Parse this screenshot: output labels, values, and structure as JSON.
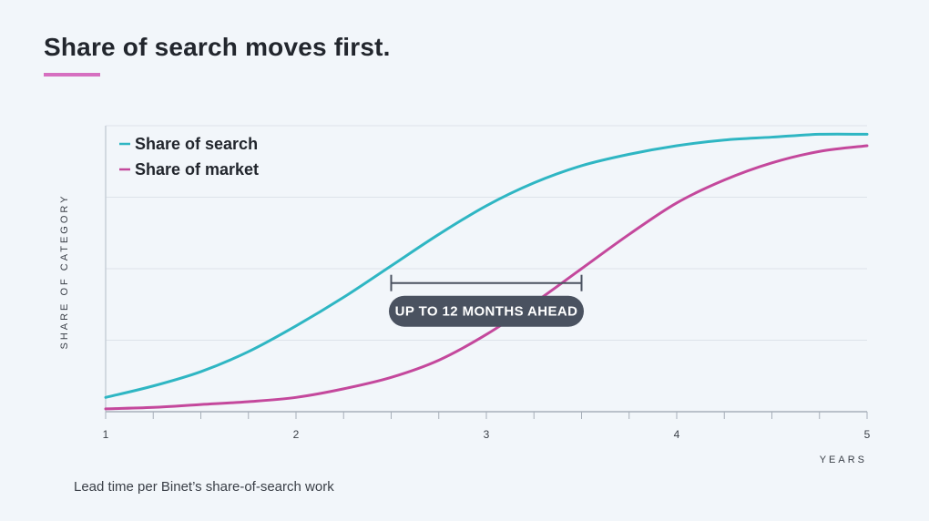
{
  "page": {
    "title": "Share of search moves first.",
    "caption": "Lead time per Binet’s share-of-search work",
    "accent_color": "#d66fc0"
  },
  "chart_data": {
    "type": "line",
    "title": "Share of search moves first.",
    "xlabel": "YEARS",
    "ylabel": "SHARE OF CATEGORY",
    "xlim": [
      1,
      5
    ],
    "ylim": [
      0,
      1
    ],
    "x_ticks": [
      1,
      2,
      3,
      4,
      5
    ],
    "x_tick_labels": [
      "1",
      "2",
      "3",
      "4",
      "5"
    ],
    "grid": "horizontal",
    "legend_position": "top-left",
    "series": [
      {
        "name": "Share of search",
        "color": "#2fb6c3",
        "x": [
          1,
          1.25,
          1.5,
          1.75,
          2,
          2.25,
          2.5,
          2.75,
          3,
          3.25,
          3.5,
          3.75,
          4,
          4.25,
          4.5,
          4.75,
          5
        ],
        "values": [
          0.05,
          0.09,
          0.14,
          0.21,
          0.3,
          0.4,
          0.51,
          0.62,
          0.72,
          0.8,
          0.86,
          0.9,
          0.93,
          0.95,
          0.96,
          0.97,
          0.97
        ]
      },
      {
        "name": "Share of market",
        "color": "#c4489c",
        "x": [
          1,
          1.25,
          1.5,
          1.75,
          2,
          2.25,
          2.5,
          2.75,
          3,
          3.25,
          3.5,
          3.75,
          4,
          4.25,
          4.5,
          4.75,
          5
        ],
        "values": [
          0.01,
          0.015,
          0.025,
          0.035,
          0.05,
          0.08,
          0.12,
          0.18,
          0.27,
          0.38,
          0.5,
          0.62,
          0.73,
          0.81,
          0.87,
          0.91,
          0.93
        ]
      }
    ],
    "annotation": {
      "label": "UP TO 12 MONTHS AHEAD",
      "x_start": 2.5,
      "x_end": 3.5,
      "y": 0.45
    }
  }
}
